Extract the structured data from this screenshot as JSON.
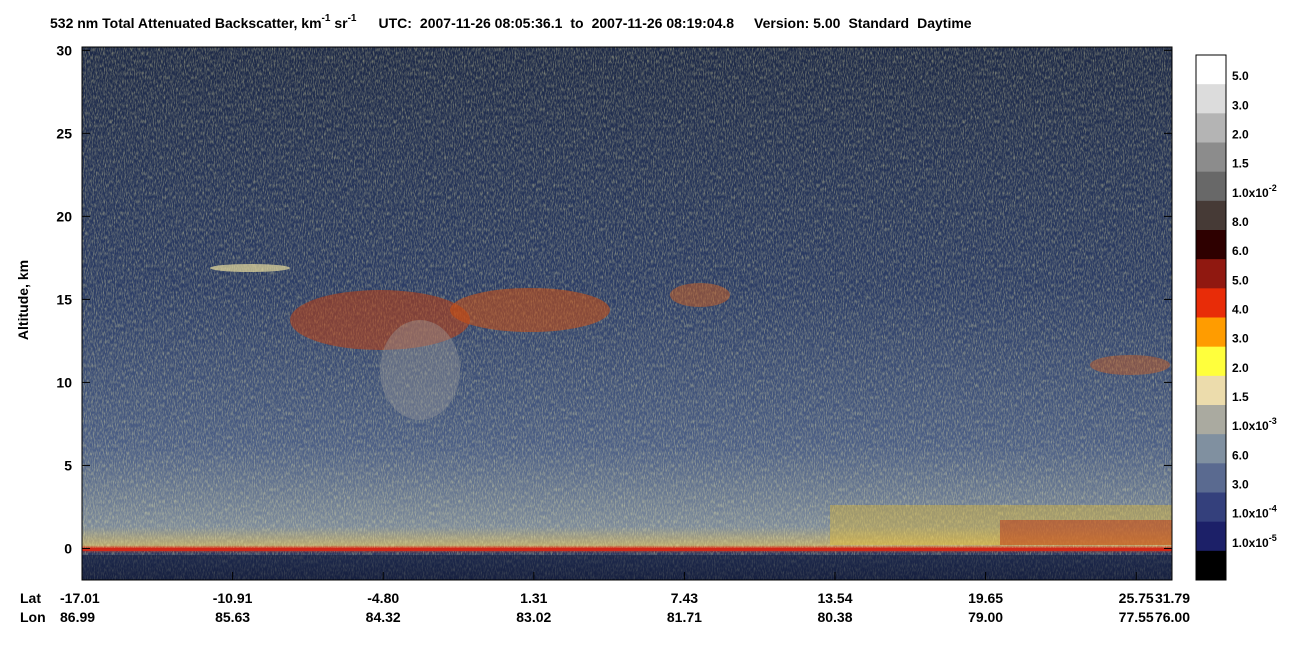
{
  "chart_data": {
    "type": "heatmap",
    "title": {
      "name": "532 nm Total Attenuated Backscatter, km",
      "name_sup": "-1",
      "unit2": " sr",
      "unit2_sup": "-1",
      "utc_label": "UTC:",
      "start": "2007-11-26 08:05:36.1",
      "to": "to",
      "end": "2007-11-26 08:19:04.8",
      "version": "Version: 5.00",
      "product": "Standard",
      "mode": "Daytime"
    },
    "ylabel": "Altitude, km",
    "ylim": [
      -1.9,
      30.2
    ],
    "yticks": [
      0,
      5,
      10,
      15,
      20,
      25,
      30
    ],
    "x_row_labels": [
      "Lat",
      "Lon"
    ],
    "xticks": [
      {
        "lat": "-17.01",
        "lon": "86.99"
      },
      {
        "lat": "-10.91",
        "lon": "85.63"
      },
      {
        "lat": "-4.80",
        "lon": "84.32"
      },
      {
        "lat": "1.31",
        "lon": "83.02"
      },
      {
        "lat": "7.43",
        "lon": "81.71"
      },
      {
        "lat": "13.54",
        "lon": "80.38"
      },
      {
        "lat": "19.65",
        "lon": "79.00"
      },
      {
        "lat": "25.75",
        "lon": "77.55"
      },
      {
        "lat": "31.79",
        "lon": "76.00"
      }
    ],
    "colorbar": {
      "colors": [
        "#ffffff",
        "#dcdcdc",
        "#b4b4b4",
        "#8c8c8c",
        "#686868",
        "#463a36",
        "#2e0000",
        "#901810",
        "#e82c08",
        "#ff9c00",
        "#ffff3c",
        "#ecdcac",
        "#aaaaa0",
        "#8090a0",
        "#5a6a90",
        "#34407c",
        "#1c2068",
        "#000000"
      ],
      "labels": [
        {
          "text": "5.0"
        },
        {
          "text": "3.0"
        },
        {
          "text": "2.0"
        },
        {
          "text": "1.5"
        },
        {
          "text": "1.0x10",
          "sup": "-2"
        },
        {
          "text": "8.0"
        },
        {
          "text": "6.0"
        },
        {
          "text": "5.0"
        },
        {
          "text": "4.0"
        },
        {
          "text": "3.0"
        },
        {
          "text": "2.0"
        },
        {
          "text": "1.5"
        },
        {
          "text": "1.0x10",
          "sup": "-3"
        },
        {
          "text": "6.0"
        },
        {
          "text": "3.0"
        },
        {
          "text": "1.0x10",
          "sup": "-4"
        },
        {
          "text": "1.0x10",
          "sup": "-5"
        }
      ]
    }
  }
}
